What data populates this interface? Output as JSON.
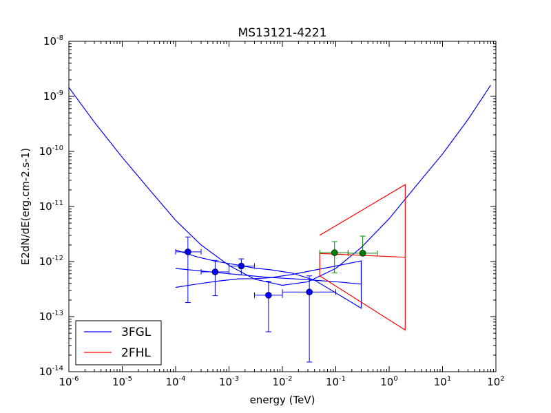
{
  "chart_data": {
    "type": "scatter",
    "title": "MS13121-4221",
    "xlabel": "energy (TeV)",
    "ylabel": "E2dN/dE(erg.cm-2.s-1)",
    "xscale": "log",
    "yscale": "log",
    "xlim": [
      1e-06,
      100
    ],
    "ylim": [
      1e-14,
      1e-08
    ],
    "grid": false,
    "legend_placement": "bottom-left",
    "x_ticks": [
      {
        "base": "10",
        "exp": "-6",
        "value": 1e-06
      },
      {
        "base": "10",
        "exp": "-5",
        "value": 1e-05
      },
      {
        "base": "10",
        "exp": "-4",
        "value": 0.0001
      },
      {
        "base": "10",
        "exp": "-3",
        "value": 0.001
      },
      {
        "base": "10",
        "exp": "-2",
        "value": 0.01
      },
      {
        "base": "10",
        "exp": "-1",
        "value": 0.1
      },
      {
        "base": "10",
        "exp": "0",
        "value": 1
      },
      {
        "base": "10",
        "exp": "1",
        "value": 10
      },
      {
        "base": "10",
        "exp": "2",
        "value": 100
      }
    ],
    "y_ticks": [
      {
        "base": "10",
        "exp": "-14",
        "value": 1e-14
      },
      {
        "base": "10",
        "exp": "-13",
        "value": 1e-13
      },
      {
        "base": "10",
        "exp": "-12",
        "value": 1e-12
      },
      {
        "base": "10",
        "exp": "-11",
        "value": 1e-11
      },
      {
        "base": "10",
        "exp": "-10",
        "value": 1e-10
      },
      {
        "base": "10",
        "exp": "-9",
        "value": 1e-09
      },
      {
        "base": "10",
        "exp": "-8",
        "value": 1e-08
      }
    ],
    "legend": [
      {
        "label": "3FGL",
        "color": "#0000ff"
      },
      {
        "label": "2FHL",
        "color": "#ff0000"
      }
    ],
    "curve": {
      "color": "#0000ff",
      "x": [
        1e-06,
        3e-06,
        1e-05,
        3e-05,
        0.0001,
        0.0003,
        0.001,
        0.003,
        0.01,
        0.03,
        0.1,
        0.3,
        1,
        3,
        10,
        30,
        80
      ],
      "y": [
        1.45e-09,
        3.4e-10,
        7.8e-11,
        2.2e-11,
        5.6e-12,
        2e-12,
        8.5e-13,
        4.8e-13,
        3.7e-13,
        4.3e-13,
        7.5e-13,
        1.8e-12,
        6e-12,
        2.2e-11,
        9e-11,
        3.8e-10,
        1.6e-09
      ]
    },
    "butterflies": [
      {
        "name": "3FGL",
        "color": "#0000ff",
        "x": [
          0.0001,
          0.00025,
          0.0006,
          0.0015,
          0.003,
          0.006,
          0.015,
          0.04,
          0.1,
          0.3,
          0.3,
          0.1,
          0.04,
          0.015,
          0.006,
          0.003,
          0.0015,
          0.0006,
          0.00025,
          0.0001
        ],
        "y": [
          1.62e-12,
          1.22e-12,
          1e-12,
          8.6e-13,
          7.6e-13,
          7.1e-13,
          6.2e-13,
          4.6e-13,
          2.7e-13,
          1.42e-13,
          1.03e-12,
          8.3e-13,
          7e-13,
          5.8e-13,
          5.1e-13,
          4.9e-13,
          4.85e-13,
          4.4e-13,
          3.9e-13,
          3.4e-13
        ]
      },
      {
        "name": "3FGL",
        "color": "#0000ff",
        "x": [
          0.0001,
          0.001,
          0.005,
          0.02,
          0.1,
          0.3,
          0.3
        ],
        "y": [
          7.5e-13,
          6e-13,
          5.2e-13,
          4.8e-13,
          4.3e-13,
          3.9e-13,
          1e-12
        ]
      },
      {
        "name": "2FHL",
        "color": "#ff0000",
        "x": [
          0.05,
          2,
          2,
          0.05,
          0.05,
          2
        ],
        "y": [
          3e-12,
          2.5e-11,
          5.7e-14,
          5.5e-13,
          1.4e-12,
          1.2e-12
        ]
      }
    ],
    "series": [
      {
        "name": "3FGL",
        "color": "#0000ff",
        "points": [
          {
            "x": 0.00017,
            "y": 1.5e-12,
            "xlo": 0.0001,
            "xhi": 0.0003,
            "ylo": 1.8e-13,
            "yhi": 2.8e-12
          },
          {
            "x": 0.00055,
            "y": 6.5e-13,
            "xlo": 0.0003,
            "xhi": 0.001,
            "ylo": 2.4e-13,
            "yhi": 1.05e-12
          },
          {
            "x": 0.0017,
            "y": 8.3e-13,
            "xlo": 0.001,
            "xhi": 0.003,
            "ylo": 5.7e-13,
            "yhi": 1.12e-12
          },
          {
            "x": 0.0055,
            "y": 2.45e-13,
            "xlo": 0.003,
            "xhi": 0.01,
            "ylo": 5.3e-14,
            "yhi": 4.4e-13
          },
          {
            "x": 0.032,
            "y": 2.8e-13,
            "xlo": 0.01,
            "xhi": 0.1,
            "ylo": 1.5e-14,
            "yhi": 5.5e-13
          }
        ]
      },
      {
        "name": "2FHL points",
        "color": "#008000",
        "points": [
          {
            "x": 0.095,
            "y": 1.45e-12,
            "xlo": 0.05,
            "xhi": 0.17,
            "ylo": 6.2e-13,
            "yhi": 2.3e-12
          },
          {
            "x": 0.32,
            "y": 1.42e-12,
            "xlo": 0.17,
            "xhi": 0.6,
            "ylo": 1.42e-12,
            "yhi": 2.9e-12
          }
        ]
      }
    ]
  }
}
